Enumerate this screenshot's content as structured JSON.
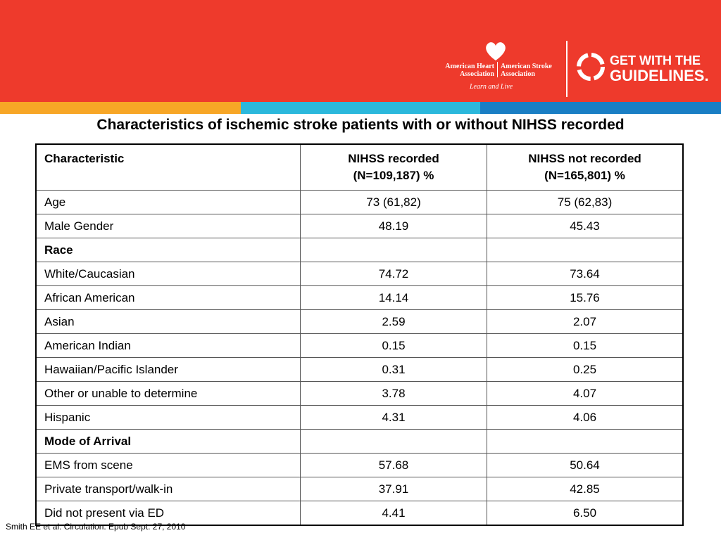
{
  "header": {
    "aha": [
      "American Heart",
      "Association"
    ],
    "asa": [
      "American Stroke",
      "Association"
    ],
    "tagline": "Learn and Live",
    "gwtg": [
      "GET WITH THE",
      "GUIDELINES."
    ]
  },
  "title": "Characteristics of ischemic stroke patients with or without NIHSS recorded",
  "table": {
    "columns": [
      [
        "Characteristic"
      ],
      [
        "NIHSS recorded",
        "(N=109,187) %"
      ],
      [
        "NIHSS not recorded",
        "(N=165,801) %"
      ]
    ],
    "rows": [
      [
        "Age",
        "73 (61,82)",
        "75 (62,83)"
      ],
      [
        "Male Gender",
        "48.19",
        "45.43"
      ],
      [
        "Race"
      ],
      [
        "White/Caucasian",
        "74.72",
        "73.64"
      ],
      [
        "African American",
        "14.14",
        "15.76"
      ],
      [
        "Asian",
        "2.59",
        "2.07"
      ],
      [
        "American Indian",
        "0.15",
        "0.15"
      ],
      [
        "Hawaiian/Pacific Islander",
        "0.31",
        "0.25"
      ],
      [
        "Other or unable to determine",
        "3.78",
        "4.07"
      ],
      [
        "Hispanic",
        "4.31",
        "4.06"
      ],
      [
        "Mode of Arrival"
      ],
      [
        "EMS from scene",
        "57.68",
        "50.64"
      ],
      [
        "Private transport/walk-in",
        "37.91",
        "42.85"
      ],
      [
        "Did not present via ED",
        "4.41",
        "6.50"
      ]
    ]
  },
  "footer": "Smith EE et al. Circulation.  Epub Sept. 27, 2010"
}
